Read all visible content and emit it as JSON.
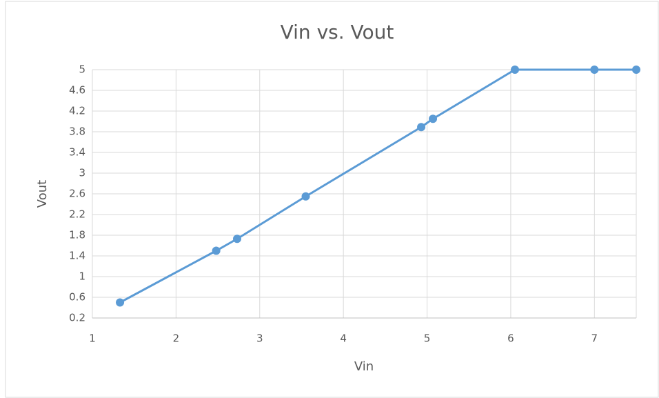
{
  "chart_data": {
    "type": "line",
    "title": "Vin vs. Vout",
    "x_label": "Vin",
    "y_label": "Vout",
    "x": [
      1.33,
      2.48,
      2.73,
      3.55,
      4.93,
      5.07,
      6.05,
      7,
      7.5
    ],
    "series": [
      {
        "name": "Vout",
        "color": "#5b9bd5",
        "values": [
          0.5,
          1.5,
          1.73,
          2.55,
          3.89,
          4.05,
          5,
          5,
          5
        ]
      }
    ],
    "xlim": [
      1,
      7.5
    ],
    "xticks": [
      1,
      2,
      3,
      4,
      5,
      6,
      7
    ],
    "ylim": [
      0.2,
      5
    ],
    "yticks": [
      0.2,
      0.6,
      1,
      1.4,
      1.8,
      2.2,
      2.6,
      3,
      3.4,
      3.8,
      4.2,
      4.6,
      5
    ],
    "grid": true,
    "markers": true
  }
}
